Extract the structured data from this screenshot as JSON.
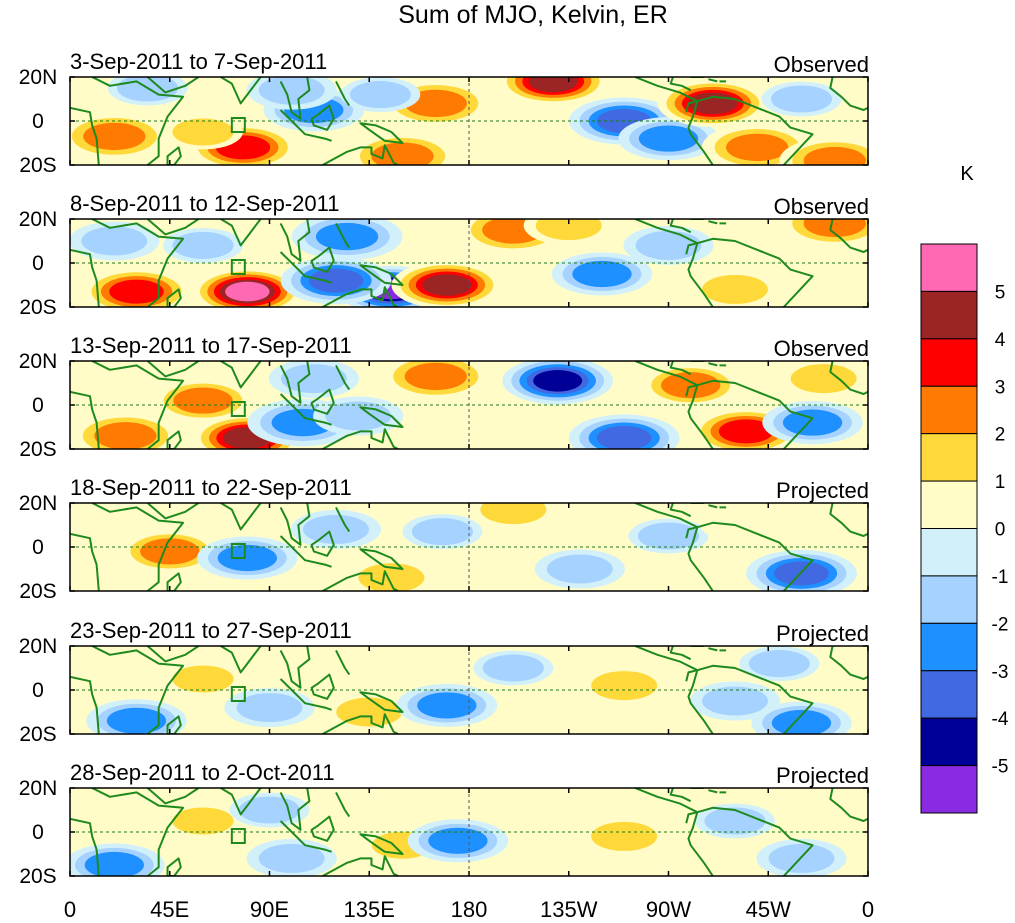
{
  "chart_data": {
    "type": "heatmap",
    "title": "Sum of MJO, Kelvin, ER",
    "units": "K",
    "lat_tick_labels": [
      "20N",
      "0",
      "20S"
    ],
    "lon_tick_labels": [
      "0",
      "45E",
      "90E",
      "135E",
      "180",
      "135W",
      "90W",
      "45W",
      "0"
    ],
    "lat_range": [
      -20,
      20
    ],
    "lon_range": [
      0,
      360
    ],
    "colorbar": {
      "levels": [
        "5",
        "4",
        "3",
        "2",
        "1",
        "0",
        "-1",
        "-2",
        "-3",
        "-4",
        "-5"
      ],
      "colors": [
        "#ff69b4",
        "#9b2424",
        "#ff0000",
        "#ff7a00",
        "#ffd93a",
        "#fffcc8",
        "#d2f0fa",
        "#a5d2ff",
        "#1e90ff",
        "#4169e1",
        "#000096",
        "#8a2be2"
      ]
    },
    "panels": [
      {
        "date_range": "3-Sep-2011 to 7-Sep-2011",
        "status": "Observed",
        "anomalies": [
          {
            "lon": 20,
            "lat": -7,
            "value": 3
          },
          {
            "lon": 78,
            "lat": -12,
            "value": 4
          },
          {
            "lon": 60,
            "lat": -5,
            "value": 1.5
          },
          {
            "lon": 110,
            "lat": 5,
            "value": -2.5
          },
          {
            "lon": 100,
            "lat": 14,
            "value": -2
          },
          {
            "lon": 150,
            "lat": -16,
            "value": 3
          },
          {
            "lon": 165,
            "lat": 8,
            "value": 3
          },
          {
            "lon": 140,
            "lat": 12,
            "value": -1.5
          },
          {
            "lon": 218,
            "lat": 18,
            "value": 4.5
          },
          {
            "lon": 250,
            "lat": 0,
            "value": -4
          },
          {
            "lon": 270,
            "lat": -8,
            "value": -2.5
          },
          {
            "lon": 290,
            "lat": 8,
            "value": 5
          },
          {
            "lon": 310,
            "lat": -12,
            "value": 3
          },
          {
            "lon": 345,
            "lat": -18,
            "value": 3
          },
          {
            "lon": 35,
            "lat": 15,
            "value": -1.5
          },
          {
            "lon": 330,
            "lat": 10,
            "value": -1.5
          }
        ]
      },
      {
        "date_range": "8-Sep-2011 to 12-Sep-2011",
        "status": "Observed",
        "anomalies": [
          {
            "lon": 30,
            "lat": -13,
            "value": 4
          },
          {
            "lon": 80,
            "lat": -13,
            "value": 5.5
          },
          {
            "lon": 145,
            "lat": -12,
            "value": -5.5
          },
          {
            "lon": 120,
            "lat": -8,
            "value": -4
          },
          {
            "lon": 170,
            "lat": -10,
            "value": 5
          },
          {
            "lon": 125,
            "lat": 12,
            "value": -3
          },
          {
            "lon": 200,
            "lat": 15,
            "value": 3
          },
          {
            "lon": 240,
            "lat": -5,
            "value": -2.5
          },
          {
            "lon": 270,
            "lat": 8,
            "value": -2
          },
          {
            "lon": 300,
            "lat": -12,
            "value": 2
          },
          {
            "lon": 345,
            "lat": 18,
            "value": 3
          },
          {
            "lon": 60,
            "lat": 8,
            "value": -1.5
          },
          {
            "lon": 20,
            "lat": 10,
            "value": -2
          },
          {
            "lon": 225,
            "lat": 17,
            "value": 2
          }
        ]
      },
      {
        "date_range": "13-Sep-2011 to 17-Sep-2011",
        "status": "Observed",
        "anomalies": [
          {
            "lon": 25,
            "lat": -14,
            "value": 3
          },
          {
            "lon": 60,
            "lat": 2,
            "value": 2.5
          },
          {
            "lon": 80,
            "lat": -15,
            "value": 5
          },
          {
            "lon": 105,
            "lat": -8,
            "value": -3
          },
          {
            "lon": 130,
            "lat": -5,
            "value": -2
          },
          {
            "lon": 165,
            "lat": 13,
            "value": 3
          },
          {
            "lon": 220,
            "lat": 11,
            "value": -5
          },
          {
            "lon": 250,
            "lat": -15,
            "value": -3.5
          },
          {
            "lon": 280,
            "lat": 9,
            "value": 2.5
          },
          {
            "lon": 305,
            "lat": -12,
            "value": 3.5
          },
          {
            "lon": 340,
            "lat": 12,
            "value": 2
          },
          {
            "lon": 335,
            "lat": -8,
            "value": -2.5
          },
          {
            "lon": 110,
            "lat": 12,
            "value": -2
          }
        ]
      },
      {
        "date_range": "18-Sep-2011 to 22-Sep-2011",
        "status": "Projected",
        "anomalies": [
          {
            "lon": 45,
            "lat": -2,
            "value": 2.5
          },
          {
            "lon": 80,
            "lat": -5,
            "value": -2.5
          },
          {
            "lon": 120,
            "lat": 8,
            "value": -2
          },
          {
            "lon": 145,
            "lat": -14,
            "value": 2
          },
          {
            "lon": 168,
            "lat": 7,
            "value": -1.5
          },
          {
            "lon": 200,
            "lat": 17,
            "value": 2
          },
          {
            "lon": 230,
            "lat": -10,
            "value": -2
          },
          {
            "lon": 270,
            "lat": 5,
            "value": -1.5
          },
          {
            "lon": 330,
            "lat": -12,
            "value": -3.5
          },
          {
            "lon": 300,
            "lat": 10,
            "value": 1
          }
        ]
      },
      {
        "date_range": "23-Sep-2011 to 27-Sep-2011",
        "status": "Projected",
        "anomalies": [
          {
            "lon": 30,
            "lat": -14,
            "value": -2.5
          },
          {
            "lon": 60,
            "lat": 5,
            "value": 1.5
          },
          {
            "lon": 90,
            "lat": -8,
            "value": -2
          },
          {
            "lon": 135,
            "lat": -10,
            "value": 2
          },
          {
            "lon": 170,
            "lat": -7,
            "value": -2.5
          },
          {
            "lon": 200,
            "lat": 10,
            "value": -1.5
          },
          {
            "lon": 250,
            "lat": 2,
            "value": 2
          },
          {
            "lon": 300,
            "lat": -5,
            "value": -2
          },
          {
            "lon": 330,
            "lat": -15,
            "value": -2.5
          },
          {
            "lon": 320,
            "lat": 12,
            "value": -1.5
          }
        ]
      },
      {
        "date_range": "28-Sep-2011 to 2-Oct-2011",
        "status": "Projected",
        "anomalies": [
          {
            "lon": 20,
            "lat": -15,
            "value": -2.5
          },
          {
            "lon": 60,
            "lat": 5,
            "value": 1.5
          },
          {
            "lon": 90,
            "lat": 10,
            "value": -1.5
          },
          {
            "lon": 100,
            "lat": -12,
            "value": -2
          },
          {
            "lon": 150,
            "lat": -6,
            "value": 1.5
          },
          {
            "lon": 175,
            "lat": -4,
            "value": -2.5
          },
          {
            "lon": 250,
            "lat": -2,
            "value": 2
          },
          {
            "lon": 300,
            "lat": 5,
            "value": -1.5
          },
          {
            "lon": 330,
            "lat": -12,
            "value": -2
          }
        ]
      }
    ]
  }
}
